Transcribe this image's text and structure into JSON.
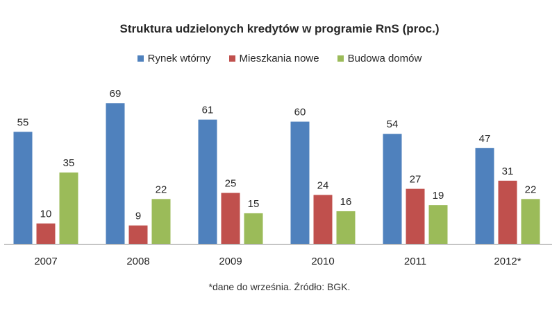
{
  "chart_data": {
    "type": "bar",
    "title": "Struktura udzielonych kredytów w programie RnS (proc.)",
    "categories": [
      "2007",
      "2008",
      "2009",
      "2010",
      "2011",
      "2012*"
    ],
    "series": [
      {
        "name": "Rynek wtórny",
        "color": "#4F81BD",
        "values": [
          55,
          69,
          61,
          60,
          54,
          47
        ]
      },
      {
        "name": "Mieszkania nowe",
        "color": "#C0504D",
        "values": [
          10,
          9,
          25,
          24,
          27,
          31
        ]
      },
      {
        "name": "Budowa domów",
        "color": "#9BBB59",
        "values": [
          35,
          22,
          15,
          16,
          19,
          22
        ]
      }
    ],
    "ylim": [
      0,
      80
    ],
    "grid": false,
    "legend_position": "top"
  },
  "footnote": "*dane do września. Źródło: BGK."
}
